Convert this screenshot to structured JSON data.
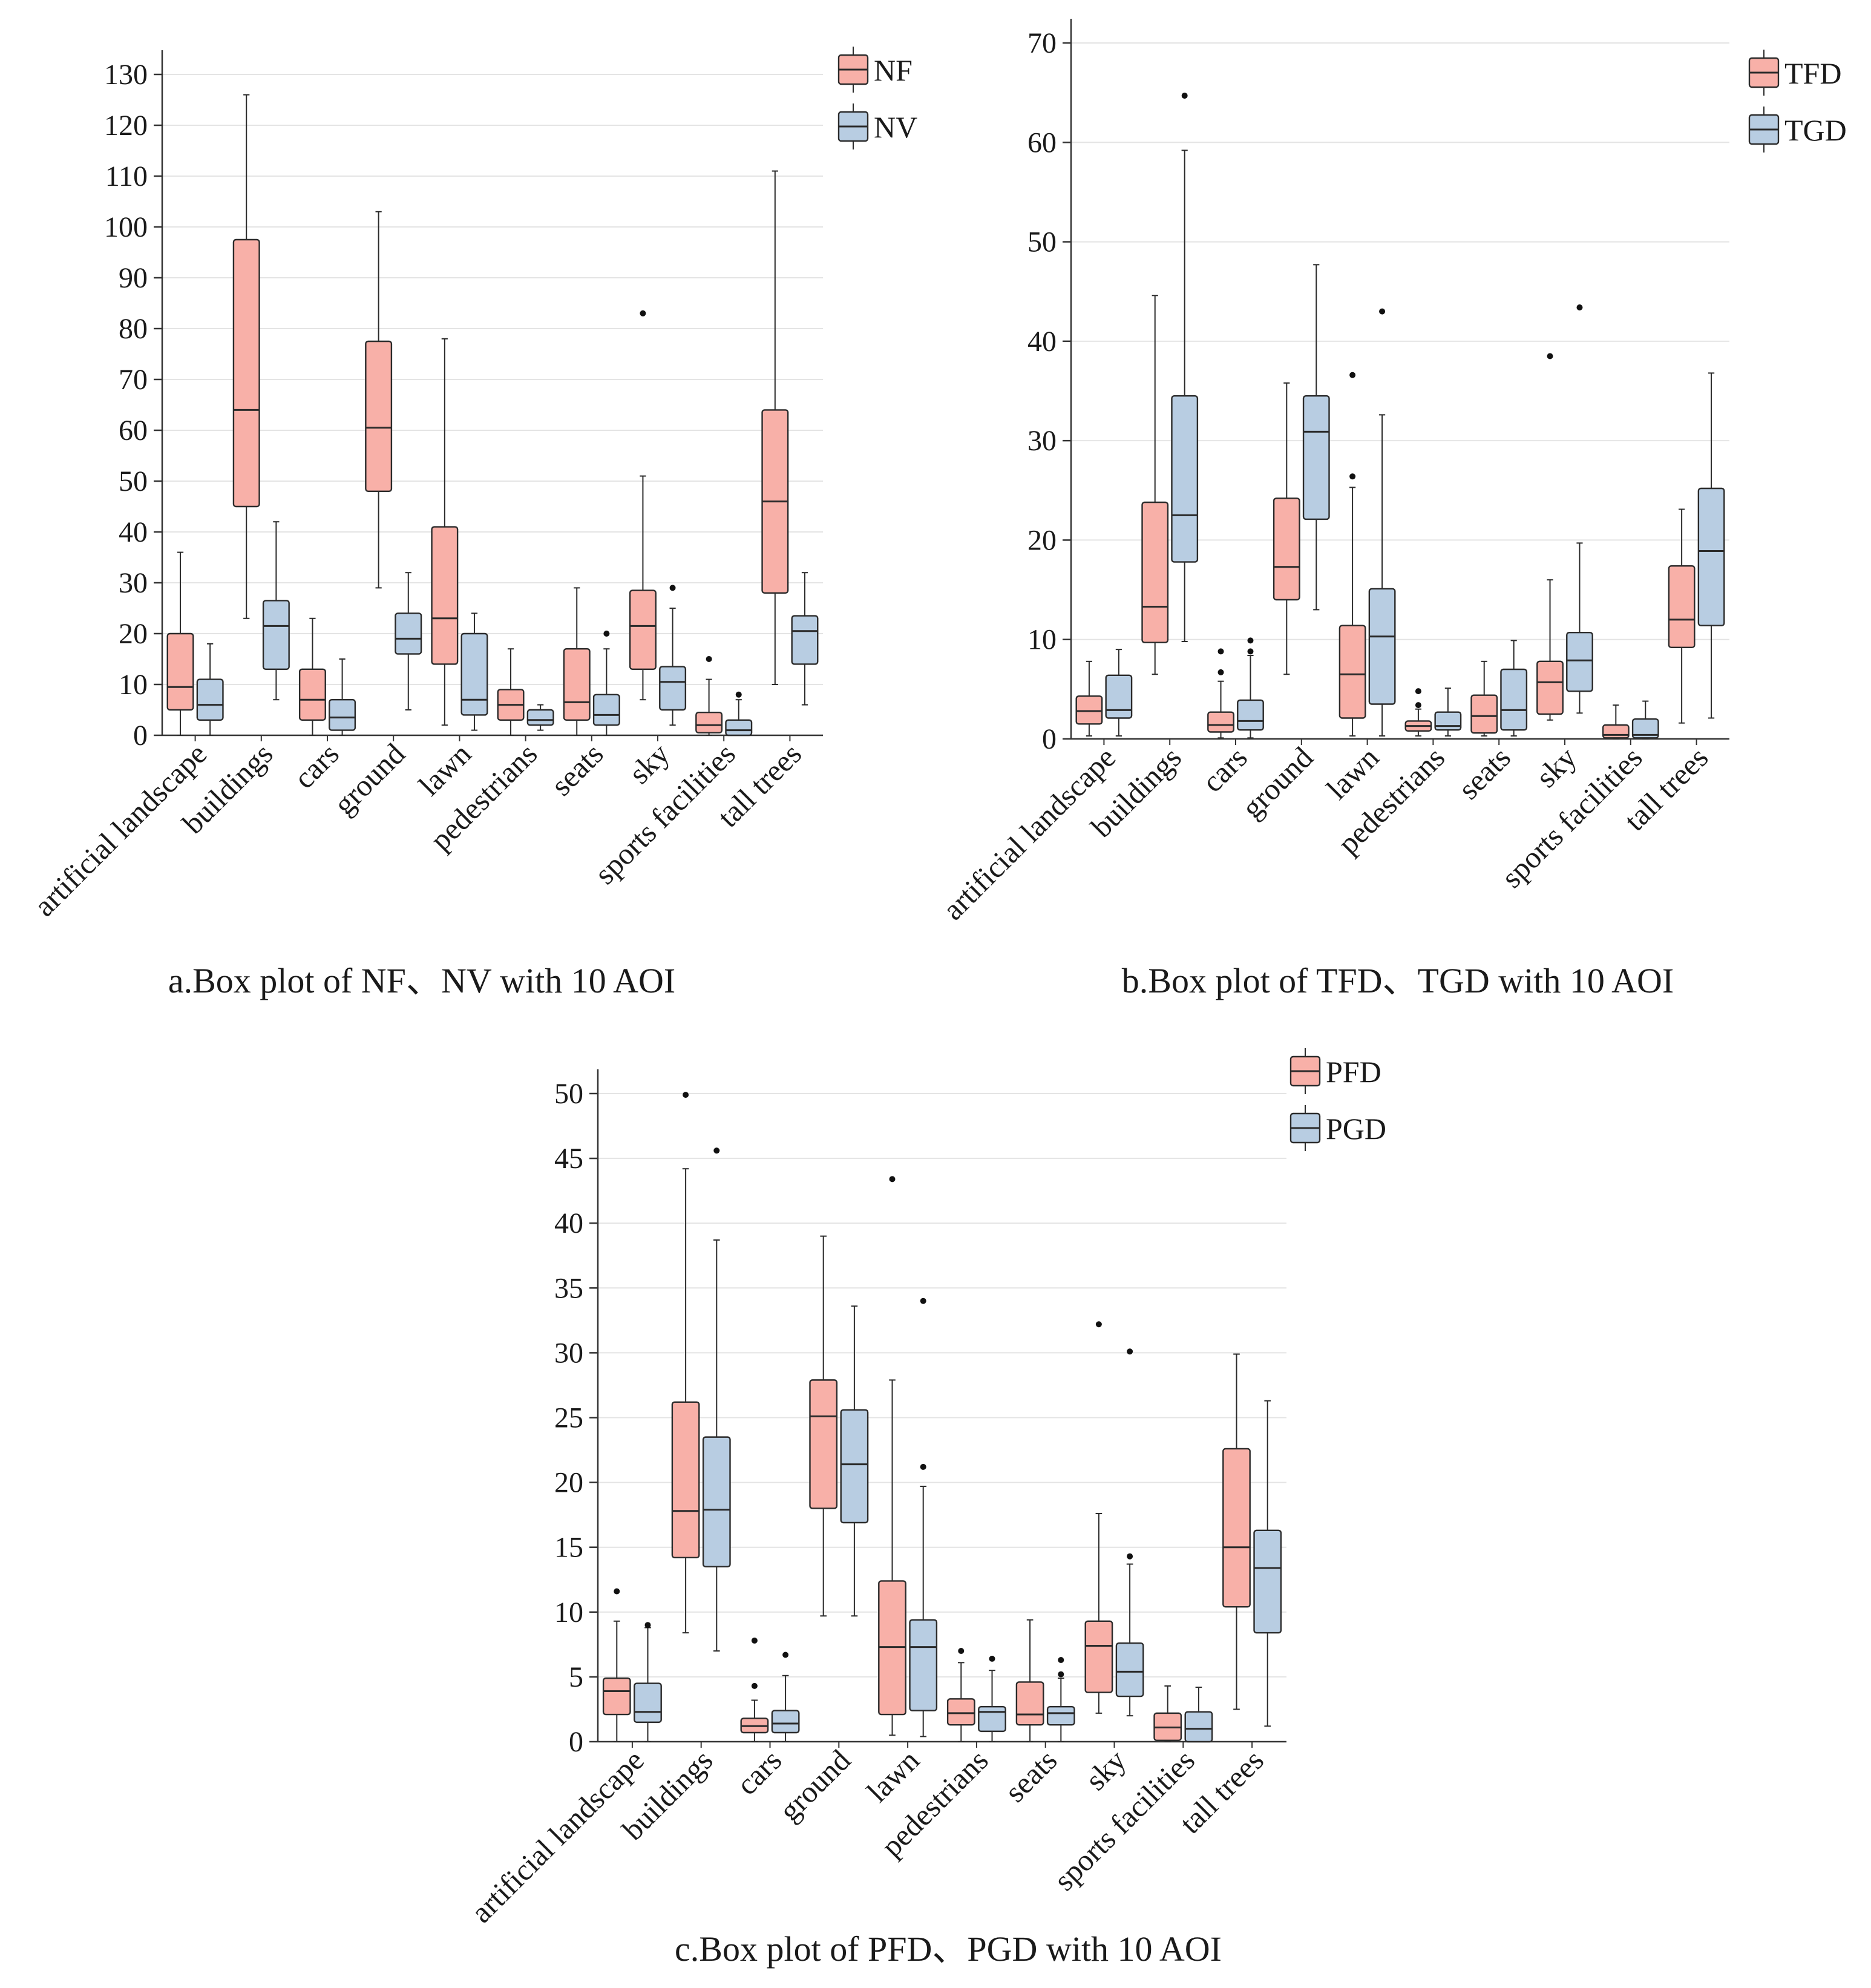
{
  "colors": {
    "series1_fill": "#f8b0a8",
    "series2_fill": "#b8cde2",
    "stroke": "#2b2b2b",
    "grid": "#e4e4e4",
    "axis": "#333333"
  },
  "chart_data": [
    {
      "type": "box",
      "title": "a.Box plot of NF、NV with 10 AOI",
      "xlabel": "",
      "ylabel": "",
      "ylim": [
        0,
        130
      ],
      "yticks": [
        0,
        10,
        20,
        30,
        40,
        50,
        60,
        70,
        80,
        90,
        100,
        110,
        120,
        130
      ],
      "grid": true,
      "legend_position": "top-right",
      "categories": [
        "artificial landscape",
        "buildings",
        "cars",
        "ground",
        "lawn",
        "pedestrians",
        "seats",
        "sky",
        "sports facilities",
        "tall trees"
      ],
      "series": [
        {
          "name": "NF",
          "boxes": [
            {
              "whislo": 0,
              "q1": 5,
              "med": 9.5,
              "q3": 20,
              "whishi": 36,
              "fliers": []
            },
            {
              "whislo": 23,
              "q1": 45,
              "med": 64,
              "q3": 97.5,
              "whishi": 126,
              "fliers": []
            },
            {
              "whislo": 0,
              "q1": 3,
              "med": 7,
              "q3": 13,
              "whishi": 23,
              "fliers": []
            },
            {
              "whislo": 29,
              "q1": 48,
              "med": 60.5,
              "q3": 77.5,
              "whishi": 103,
              "fliers": []
            },
            {
              "whislo": 2,
              "q1": 14,
              "med": 23,
              "q3": 41,
              "whishi": 78,
              "fliers": []
            },
            {
              "whislo": 0,
              "q1": 3,
              "med": 6,
              "q3": 9,
              "whishi": 17,
              "fliers": []
            },
            {
              "whislo": 0,
              "q1": 3,
              "med": 6.5,
              "q3": 17,
              "whishi": 29,
              "fliers": []
            },
            {
              "whislo": 7,
              "q1": 13,
              "med": 21.5,
              "q3": 28.5,
              "whishi": 51,
              "fliers": [
                83
              ]
            },
            {
              "whislo": 0,
              "q1": 0.5,
              "med": 2,
              "q3": 4.5,
              "whishi": 11,
              "fliers": [
                15
              ]
            },
            {
              "whislo": 10,
              "q1": 28,
              "med": 46,
              "q3": 64,
              "whishi": 111,
              "fliers": []
            }
          ]
        },
        {
          "name": "NV",
          "boxes": [
            {
              "whislo": 0,
              "q1": 3,
              "med": 6,
              "q3": 11,
              "whishi": 18,
              "fliers": []
            },
            {
              "whislo": 7,
              "q1": 13,
              "med": 21.5,
              "q3": 26.5,
              "whishi": 42,
              "fliers": []
            },
            {
              "whislo": 0,
              "q1": 1,
              "med": 3.5,
              "q3": 7,
              "whishi": 15,
              "fliers": []
            },
            {
              "whislo": 5,
              "q1": 16,
              "med": 19,
              "q3": 24,
              "whishi": 32,
              "fliers": []
            },
            {
              "whislo": 1,
              "q1": 4,
              "med": 7,
              "q3": 20,
              "whishi": 24,
              "fliers": []
            },
            {
              "whislo": 1,
              "q1": 2,
              "med": 3,
              "q3": 5,
              "whishi": 6,
              "fliers": []
            },
            {
              "whislo": 0,
              "q1": 2,
              "med": 4,
              "q3": 8,
              "whishi": 17,
              "fliers": [
                20
              ]
            },
            {
              "whislo": 2,
              "q1": 5,
              "med": 10.5,
              "q3": 13.5,
              "whishi": 25,
              "fliers": [
                29
              ]
            },
            {
              "whislo": 0,
              "q1": 0,
              "med": 1,
              "q3": 3,
              "whishi": 7,
              "fliers": [
                8
              ]
            },
            {
              "whislo": 6,
              "q1": 14,
              "med": 20.5,
              "q3": 23.5,
              "whishi": 32,
              "fliers": []
            }
          ]
        }
      ]
    },
    {
      "type": "box",
      "title": "b.Box plot of TFD、TGD with 10 AOI",
      "xlabel": "",
      "ylabel": "",
      "ylim": [
        0,
        70
      ],
      "yticks": [
        0,
        10,
        20,
        30,
        40,
        50,
        60,
        70
      ],
      "grid": true,
      "legend_position": "top-right",
      "categories": [
        "artificial landscape",
        "buildings",
        "cars",
        "ground",
        "lawn",
        "pedestrians",
        "seats",
        "sky",
        "sports facilities",
        "tall trees"
      ],
      "series": [
        {
          "name": "TFD",
          "boxes": [
            {
              "whislo": 0.3,
              "q1": 1.5,
              "med": 2.8,
              "q3": 4.3,
              "whishi": 7.8,
              "fliers": []
            },
            {
              "whislo": 6.5,
              "q1": 9.7,
              "med": 13.3,
              "q3": 23.8,
              "whishi": 44.6,
              "fliers": []
            },
            {
              "whislo": 0.1,
              "q1": 0.7,
              "med": 1.4,
              "q3": 2.7,
              "whishi": 5.8,
              "fliers": [
                6.7,
                8.8
              ]
            },
            {
              "whislo": 6.5,
              "q1": 14,
              "med": 17.3,
              "q3": 24.2,
              "whishi": 35.8,
              "fliers": []
            },
            {
              "whislo": 0.3,
              "q1": 2.1,
              "med": 6.5,
              "q3": 11.4,
              "whishi": 25.3,
              "fliers": [
                26.4,
                36.6
              ]
            },
            {
              "whislo": 0.3,
              "q1": 0.8,
              "med": 1.3,
              "q3": 1.8,
              "whishi": 3,
              "fliers": [
                3.4,
                4.8
              ]
            },
            {
              "whislo": 0.3,
              "q1": 0.6,
              "med": 2.3,
              "q3": 4.4,
              "whishi": 7.8,
              "fliers": []
            },
            {
              "whislo": 1.9,
              "q1": 2.5,
              "med": 5.7,
              "q3": 7.8,
              "whishi": 16,
              "fliers": [
                38.5
              ]
            },
            {
              "whislo": 0,
              "q1": 0.1,
              "med": 0.4,
              "q3": 1.4,
              "whishi": 3.4,
              "fliers": []
            },
            {
              "whislo": 1.6,
              "q1": 9.2,
              "med": 12,
              "q3": 17.4,
              "whishi": 23.1,
              "fliers": []
            }
          ]
        },
        {
          "name": "TGD",
          "boxes": [
            {
              "whislo": 0.3,
              "q1": 2.1,
              "med": 2.9,
              "q3": 6.4,
              "whishi": 9,
              "fliers": []
            },
            {
              "whislo": 9.8,
              "q1": 17.8,
              "med": 22.5,
              "q3": 34.5,
              "whishi": 59.2,
              "fliers": [
                64.7
              ]
            },
            {
              "whislo": 0.1,
              "q1": 0.9,
              "med": 1.8,
              "q3": 3.9,
              "whishi": 8.4,
              "fliers": [
                8.8,
                9.9
              ]
            },
            {
              "whislo": 13,
              "q1": 22.1,
              "med": 30.9,
              "q3": 34.5,
              "whishi": 47.7,
              "fliers": []
            },
            {
              "whislo": 0.3,
              "q1": 3.5,
              "med": 10.3,
              "q3": 15.1,
              "whishi": 32.6,
              "fliers": [
                43
              ]
            },
            {
              "whislo": 0.3,
              "q1": 0.9,
              "med": 1.3,
              "q3": 2.7,
              "whishi": 5.1,
              "fliers": []
            },
            {
              "whislo": 0.3,
              "q1": 0.9,
              "med": 2.9,
              "q3": 7,
              "whishi": 9.9,
              "fliers": []
            },
            {
              "whislo": 2.6,
              "q1": 4.8,
              "med": 7.9,
              "q3": 10.7,
              "whishi": 19.7,
              "fliers": [
                43.4
              ]
            },
            {
              "whislo": 0,
              "q1": 0.1,
              "med": 0.4,
              "q3": 2,
              "whishi": 3.8,
              "fliers": []
            },
            {
              "whislo": 2.1,
              "q1": 11.4,
              "med": 18.9,
              "q3": 25.2,
              "whishi": 36.8,
              "fliers": []
            }
          ]
        }
      ]
    },
    {
      "type": "box",
      "title": "c.Box plot of PFD、PGD with 10 AOI",
      "xlabel": "",
      "ylabel": "",
      "ylim": [
        0,
        50
      ],
      "yticks": [
        0,
        5,
        10,
        15,
        20,
        25,
        30,
        35,
        40,
        45,
        50
      ],
      "grid": true,
      "legend_position": "top-right",
      "categories": [
        "artificial landscape",
        "buildings",
        "cars",
        "ground",
        "lawn",
        "pedestrians",
        "seats",
        "sky",
        "sports facilities",
        "tall trees"
      ],
      "series": [
        {
          "name": "PFD",
          "boxes": [
            {
              "whislo": 0,
              "q1": 2.1,
              "med": 3.9,
              "q3": 4.9,
              "whishi": 9.3,
              "fliers": [
                11.6
              ]
            },
            {
              "whislo": 8.4,
              "q1": 14.2,
              "med": 17.8,
              "q3": 26.2,
              "whishi": 44.2,
              "fliers": [
                49.9
              ]
            },
            {
              "whislo": 0,
              "q1": 0.7,
              "med": 1.2,
              "q3": 1.8,
              "whishi": 3.2,
              "fliers": [
                4.3,
                7.8
              ]
            },
            {
              "whislo": 9.7,
              "q1": 18,
              "med": 25.1,
              "q3": 27.9,
              "whishi": 39,
              "fliers": []
            },
            {
              "whislo": 0.5,
              "q1": 2.1,
              "med": 7.3,
              "q3": 12.4,
              "whishi": 27.9,
              "fliers": [
                43.4
              ]
            },
            {
              "whislo": 0,
              "q1": 1.3,
              "med": 2.2,
              "q3": 3.3,
              "whishi": 6.1,
              "fliers": [
                7
              ]
            },
            {
              "whislo": 0,
              "q1": 1.3,
              "med": 2.1,
              "q3": 4.6,
              "whishi": 9.4,
              "fliers": []
            },
            {
              "whislo": 2.2,
              "q1": 3.8,
              "med": 7.4,
              "q3": 9.3,
              "whishi": 17.6,
              "fliers": [
                32.2
              ]
            },
            {
              "whislo": 0,
              "q1": 0.1,
              "med": 1.1,
              "q3": 2.2,
              "whishi": 4.3,
              "fliers": []
            },
            {
              "whislo": 2.5,
              "q1": 10.4,
              "med": 15,
              "q3": 22.6,
              "whishi": 29.9,
              "fliers": []
            }
          ]
        },
        {
          "name": "PGD",
          "boxes": [
            {
              "whislo": 0,
              "q1": 1.5,
              "med": 2.3,
              "q3": 4.5,
              "whishi": 8.8,
              "fliers": [
                9
              ]
            },
            {
              "whislo": 7,
              "q1": 13.5,
              "med": 17.9,
              "q3": 23.5,
              "whishi": 38.7,
              "fliers": [
                45.6
              ]
            },
            {
              "whislo": 0,
              "q1": 0.7,
              "med": 1.4,
              "q3": 2.4,
              "whishi": 5.1,
              "fliers": [
                6.7
              ]
            },
            {
              "whislo": 9.7,
              "q1": 16.9,
              "med": 21.4,
              "q3": 25.6,
              "whishi": 33.6,
              "fliers": []
            },
            {
              "whislo": 0.4,
              "q1": 2.4,
              "med": 7.3,
              "q3": 9.4,
              "whishi": 19.7,
              "fliers": [
                21.2,
                34
              ]
            },
            {
              "whislo": 0,
              "q1": 0.8,
              "med": 2.3,
              "q3": 2.7,
              "whishi": 5.5,
              "fliers": [
                6.4
              ]
            },
            {
              "whislo": 0,
              "q1": 1.3,
              "med": 2.2,
              "q3": 2.7,
              "whishi": 4.9,
              "fliers": [
                5.2,
                6.3
              ]
            },
            {
              "whislo": 2,
              "q1": 3.5,
              "med": 5.4,
              "q3": 7.6,
              "whishi": 13.7,
              "fliers": [
                14.3,
                30.1
              ]
            },
            {
              "whislo": 0,
              "q1": 0,
              "med": 1,
              "q3": 2.3,
              "whishi": 4.2,
              "fliers": []
            },
            {
              "whislo": 1.2,
              "q1": 8.4,
              "med": 13.4,
              "q3": 16.3,
              "whishi": 26.3,
              "fliers": []
            }
          ]
        }
      ]
    }
  ]
}
